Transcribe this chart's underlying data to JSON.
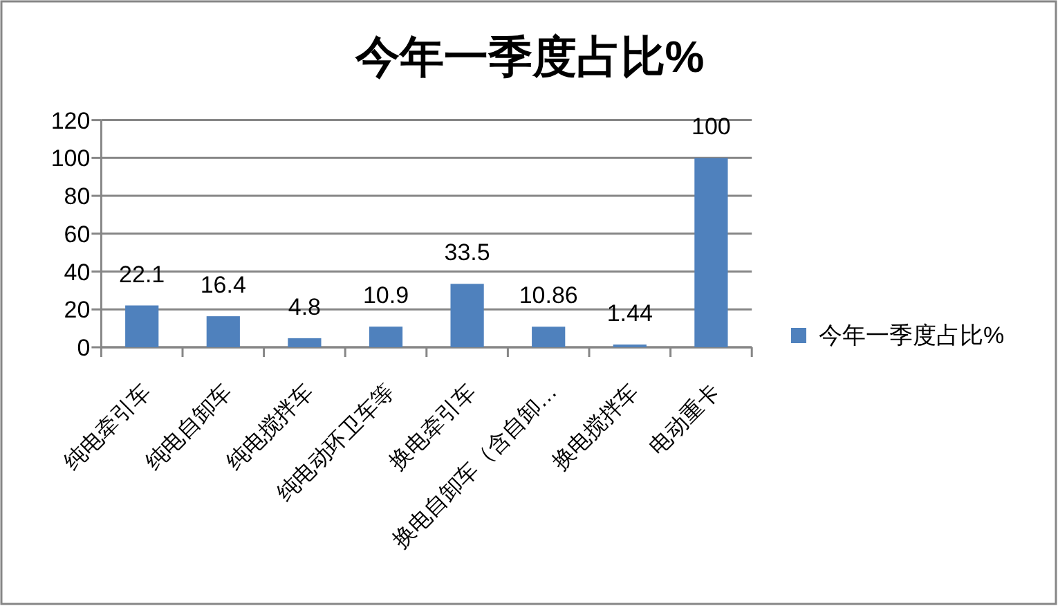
{
  "chart_data": {
    "type": "bar",
    "title": "今年一季度占比%",
    "categories": [
      "纯电牵引车",
      "纯电自卸车",
      "纯电搅拌车",
      "纯电动环卫车等",
      "换电牵引车",
      "换电自卸车（含自卸…",
      "换电搅拌车",
      "电动重卡"
    ],
    "series": [
      {
        "name": "今年一季度占比%",
        "color": "#4f81bd",
        "values": [
          22.1,
          16.4,
          4.8,
          10.9,
          33.5,
          10.86,
          1.44,
          100
        ]
      }
    ],
    "ylim": [
      0,
      120
    ],
    "yticks": [
      0,
      20,
      40,
      60,
      80,
      100,
      120
    ],
    "grid": "y",
    "legend": "right",
    "data_labels": true
  }
}
